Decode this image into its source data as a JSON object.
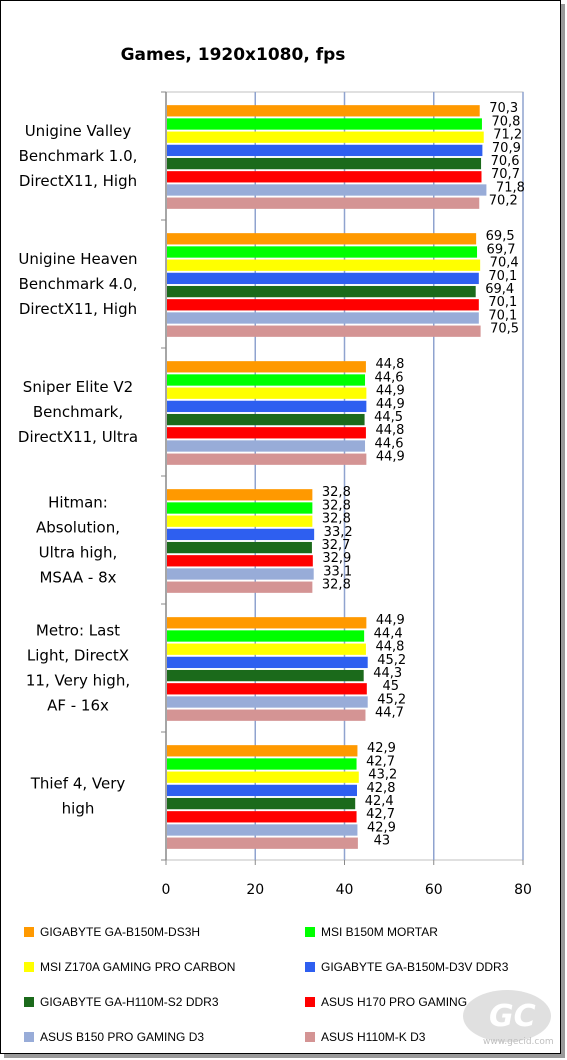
{
  "chart_data": {
    "type": "bar",
    "orientation": "horizontal",
    "title": "Games, 1920x1080, fps",
    "xlabel": "",
    "ylabel": "",
    "xlim": [
      0,
      80
    ],
    "xticks": [
      0,
      20,
      40,
      60,
      80
    ],
    "grid": "vertical",
    "legend_position": "bottom",
    "categories": [
      [
        "Unigine Valley",
        "Benchmark 1.0,",
        "DirectX11, High"
      ],
      [
        "Unigine Heaven",
        "Benchmark 4.0,",
        "DirectX11, High"
      ],
      [
        "Sniper Elite V2",
        "Benchmark,",
        "DirectX11, Ultra"
      ],
      [
        "Hitman:",
        "Absolution,",
        "Ultra high,",
        "MSAA - 8x"
      ],
      [
        "Metro: Last",
        "Light, DirectX",
        "11, Very high,",
        "AF - 16x"
      ],
      [
        "Thief 4, Very",
        "high"
      ]
    ],
    "series": [
      {
        "name": "GIGABYTE GA-B150M-DS3H",
        "color": "#ff9900",
        "values": [
          70.3,
          69.5,
          44.8,
          32.8,
          44.9,
          42.9
        ],
        "labels": [
          "70,3",
          "69,5",
          "44,8",
          "32,8",
          "44,9",
          "42,9"
        ]
      },
      {
        "name": "MSI B150M MORTAR",
        "color": "#00ff00",
        "values": [
          70.8,
          69.7,
          44.6,
          32.8,
          44.4,
          42.7
        ],
        "labels": [
          "70,8",
          "69,7",
          "44,6",
          "32,8",
          "44,4",
          "42,7"
        ]
      },
      {
        "name": "MSI Z170A GAMING PRO CARBON",
        "color": "#ffff00",
        "values": [
          71.2,
          70.4,
          44.9,
          32.8,
          44.8,
          43.2
        ],
        "labels": [
          "71,2",
          "70,4",
          "44,9",
          "32,8",
          "44,8",
          "43,2"
        ]
      },
      {
        "name": "GIGABYTE GA-B150M-D3V DDR3",
        "color": "#2e5ff0",
        "values": [
          70.9,
          70.1,
          44.9,
          33.2,
          45.2,
          42.8
        ],
        "labels": [
          "70,9",
          "70,1",
          "44,9",
          "33,2",
          "45,2",
          "42,8"
        ]
      },
      {
        "name": "GIGABYTE GA-H110M-S2 DDR3",
        "color": "#1b6a1b",
        "values": [
          70.6,
          69.4,
          44.5,
          32.7,
          44.3,
          42.4
        ],
        "labels": [
          "70,6",
          "69,4",
          "44,5",
          "32,7",
          "44,3",
          "42,4"
        ]
      },
      {
        "name": "ASUS H170 PRO GAMING",
        "color": "#ff0000",
        "values": [
          70.7,
          70.1,
          44.8,
          32.9,
          45.0,
          42.7
        ],
        "labels": [
          "70,7",
          "70,1",
          "44,8",
          "32,9",
          "45",
          "42,7"
        ]
      },
      {
        "name": "ASUS B150 PRO GAMING D3",
        "color": "#98acd8",
        "values": [
          71.8,
          70.1,
          44.6,
          33.1,
          45.2,
          42.9
        ],
        "labels": [
          "71,8",
          "70,1",
          "44,6",
          "33,1",
          "45,2",
          "42,9"
        ]
      },
      {
        "name": "ASUS H110M-K D3",
        "color": "#d49494",
        "values": [
          70.2,
          70.5,
          44.9,
          32.8,
          44.7,
          43.0
        ],
        "labels": [
          "70,2",
          "70,5",
          "44,9",
          "32,8",
          "44,7",
          "43"
        ]
      }
    ]
  },
  "watermark": {
    "text": "www.gecid.com"
  }
}
